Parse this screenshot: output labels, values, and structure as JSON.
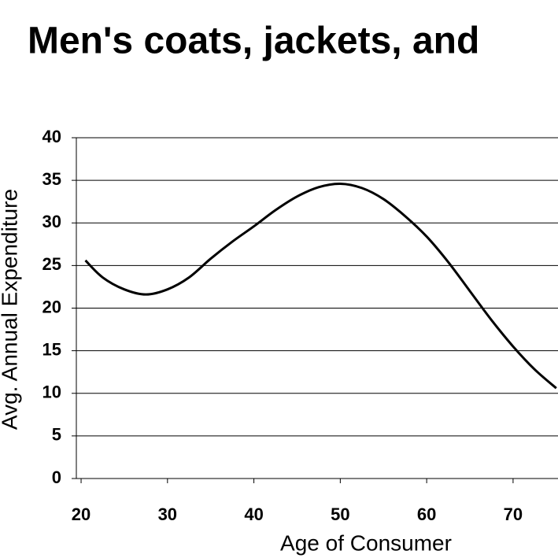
{
  "chart_data": {
    "type": "line",
    "title": "Men's coats, jackets, and",
    "x_label": "Age of Consumer",
    "y_label": "Avg. Annual Expenditure",
    "x": [
      20.5,
      22.5,
      25,
      27.5,
      30,
      32.5,
      35,
      37.5,
      40,
      42.5,
      45,
      47.5,
      50,
      52.5,
      55,
      57.5,
      60,
      62.5,
      65,
      67.5,
      70,
      72.5,
      75
    ],
    "series": [
      {
        "name": "Men's coats, jackets",
        "color": "#000000",
        "values": [
          25.6,
          23.6,
          22.2,
          21.6,
          22.2,
          23.6,
          25.8,
          27.8,
          29.6,
          31.5,
          33.1,
          34.2,
          34.6,
          34.1,
          32.8,
          30.8,
          28.4,
          25.4,
          22.0,
          18.6,
          15.5,
          12.8,
          10.6
        ]
      }
    ],
    "xlim": [
      19.45,
      75.2
    ],
    "xticks": [
      20,
      30,
      40,
      50,
      60,
      70
    ],
    "ylim": [
      0,
      40
    ],
    "yticks": [
      0,
      5,
      10,
      15,
      20,
      25,
      30,
      35,
      40
    ],
    "grid": true
  }
}
